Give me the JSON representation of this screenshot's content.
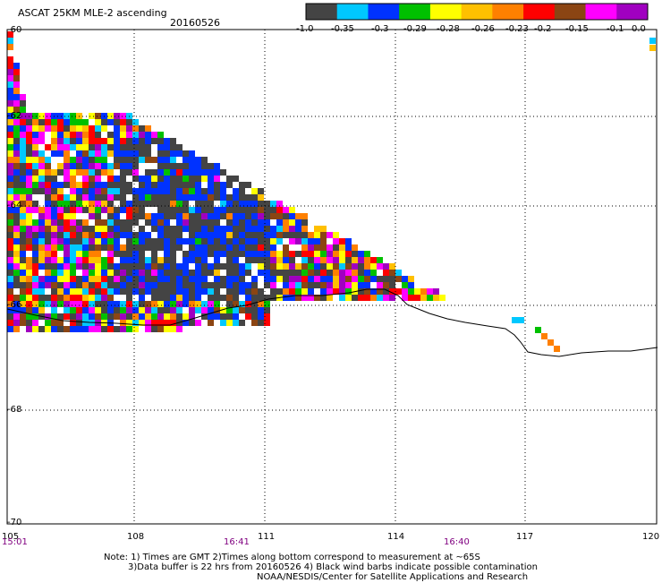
{
  "header": {
    "title": "ASCAT 25KM MLE-2 ascending",
    "date": "20160526"
  },
  "colorbar": {
    "labels": [
      "-1.0",
      "-0.35",
      "-0.3",
      "-0.29",
      "-0.28",
      "-0.26",
      "-0.23",
      "-0.2",
      "-0.15",
      "-0.1",
      "0.0"
    ],
    "colors": [
      "#444444",
      "#00c8ff",
      "#0032ff",
      "#00c000",
      "#ffff00",
      "#ffc000",
      "#ff8000",
      "#ff0000",
      "#8b4513",
      "#ff00ff",
      "#a000c0"
    ]
  },
  "map": {
    "lat_labels": [
      "-60",
      "-62",
      "-64",
      "-66",
      "-68",
      "-70"
    ],
    "lon_labels": [
      "105",
      "108",
      "111",
      "114",
      "117",
      "120"
    ],
    "time_labels": [
      "15:01",
      "16:41",
      "16:40"
    ]
  },
  "footer": {
    "line1": "Note: 1) Times are GMT 2)Times along bottom correspond to measurement at ~65S",
    "line2": "3)Data buffer is 22 hrs from 20160526 4) Black wind barbs indicate possible contamination",
    "line3": "NOAA/NESDIS/Center for Satellite Applications and Research"
  }
}
